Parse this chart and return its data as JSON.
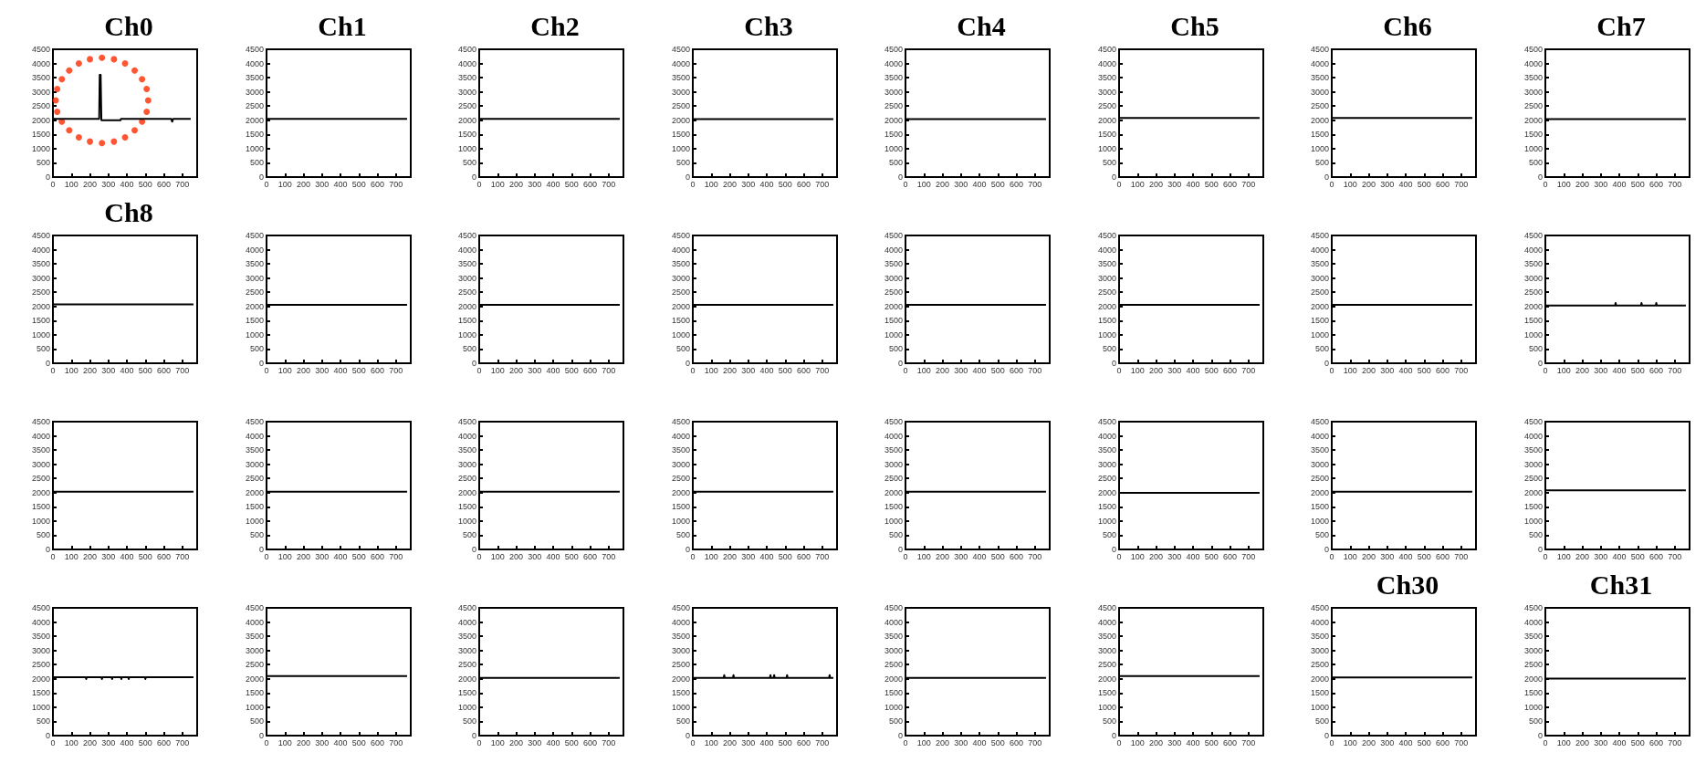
{
  "chart_data": [
    {
      "type": "line",
      "title": "Ch0",
      "xlim": [
        0,
        780
      ],
      "xticks": [
        0,
        100,
        200,
        300,
        400,
        500,
        600,
        700
      ],
      "ylim": [
        0,
        4500
      ],
      "yticks": [
        0,
        500,
        1000,
        1500,
        2000,
        2500,
        3000,
        3500,
        4000,
        4500
      ],
      "marker": "none",
      "series": [
        {
          "type": "line",
          "color": "#000000",
          "x": [
            0,
            250,
            253,
            258,
            262,
            365,
            368,
            640,
            645,
            650,
            745
          ],
          "values": [
            2050,
            2050,
            3600,
            3600,
            2000,
            2000,
            2050,
            2050,
            1950,
            2050,
            2050
          ]
        },
        {
          "type": "scatter",
          "color": "#ff2a00",
          "marker": "circle",
          "x": [
            515,
            507,
            482,
            442,
            390,
            330,
            265,
            200,
            140,
            88,
            48,
            23,
            15,
            23,
            48,
            88,
            140,
            200,
            265,
            330,
            390,
            442,
            482,
            507
          ],
          "values": [
            2700,
            3100,
            3450,
            3750,
            4000,
            4150,
            4200,
            4150,
            4000,
            3750,
            3450,
            3100,
            2700,
            2300,
            1950,
            1650,
            1400,
            1250,
            1200,
            1250,
            1400,
            1650,
            1950,
            2300
          ]
        }
      ]
    },
    {
      "type": "line",
      "title": "Ch1",
      "x": [
        0,
        760
      ],
      "values": [
        2050,
        2050
      ],
      "color": "#000000",
      "xlim": [
        0,
        780
      ],
      "xticks": [
        0,
        100,
        200,
        300,
        400,
        500,
        600,
        700
      ],
      "ylim": [
        0,
        4500
      ],
      "yticks": [
        0,
        500,
        1000,
        1500,
        2000,
        2500,
        3000,
        3500,
        4000,
        4500
      ],
      "marker": "none"
    },
    {
      "type": "line",
      "title": "Ch2",
      "x": [
        0,
        760
      ],
      "values": [
        2050,
        2050
      ],
      "color": "#000000",
      "xlim": [
        0,
        780
      ],
      "xticks": [
        0,
        100,
        200,
        300,
        400,
        500,
        600,
        700
      ],
      "ylim": [
        0,
        4500
      ],
      "yticks": [
        0,
        500,
        1000,
        1500,
        2000,
        2500,
        3000,
        3500,
        4000,
        4500
      ],
      "marker": "none"
    },
    {
      "type": "line",
      "title": "Ch3",
      "x": [
        0,
        760
      ],
      "values": [
        2040,
        2040
      ],
      "color": "#000000",
      "xlim": [
        0,
        780
      ],
      "xticks": [
        0,
        100,
        200,
        300,
        400,
        500,
        600,
        700
      ],
      "ylim": [
        0,
        4500
      ],
      "yticks": [
        0,
        500,
        1000,
        1500,
        2000,
        2500,
        3000,
        3500,
        4000,
        4500
      ],
      "marker": "none"
    },
    {
      "type": "line",
      "title": "Ch4",
      "x": [
        0,
        760
      ],
      "values": [
        2040,
        2040
      ],
      "color": "#000000",
      "xlim": [
        0,
        780
      ],
      "xticks": [
        0,
        100,
        200,
        300,
        400,
        500,
        600,
        700
      ],
      "ylim": [
        0,
        4500
      ],
      "yticks": [
        0,
        500,
        1000,
        1500,
        2000,
        2500,
        3000,
        3500,
        4000,
        4500
      ],
      "marker": "none"
    },
    {
      "type": "line",
      "title": "Ch5",
      "x": [
        0,
        760
      ],
      "values": [
        2080,
        2080
      ],
      "color": "#000000",
      "xlim": [
        0,
        780
      ],
      "xticks": [
        0,
        100,
        200,
        300,
        400,
        500,
        600,
        700
      ],
      "ylim": [
        0,
        4500
      ],
      "yticks": [
        0,
        500,
        1000,
        1500,
        2000,
        2500,
        3000,
        3500,
        4000,
        4500
      ],
      "marker": "none"
    },
    {
      "type": "line",
      "title": "Ch6",
      "x": [
        0,
        760
      ],
      "values": [
        2080,
        2080
      ],
      "color": "#000000",
      "xlim": [
        0,
        780
      ],
      "xticks": [
        0,
        100,
        200,
        300,
        400,
        500,
        600,
        700
      ],
      "ylim": [
        0,
        4500
      ],
      "yticks": [
        0,
        500,
        1000,
        1500,
        2000,
        2500,
        3000,
        3500,
        4000,
        4500
      ],
      "marker": "none"
    },
    {
      "type": "line",
      "title": "Ch7",
      "x": [
        0,
        760
      ],
      "values": [
        2040,
        2040
      ],
      "color": "#000000",
      "xlim": [
        0,
        780
      ],
      "xticks": [
        0,
        100,
        200,
        300,
        400,
        500,
        600,
        700
      ],
      "ylim": [
        0,
        4500
      ],
      "yticks": [
        0,
        500,
        1000,
        1500,
        2000,
        2500,
        3000,
        3500,
        4000,
        4500
      ],
      "marker": "none"
    },
    {
      "type": "line",
      "title": "Ch8",
      "x": [
        0,
        760
      ],
      "values": [
        2070,
        2070
      ],
      "color": "#000000",
      "xlim": [
        0,
        780
      ],
      "xticks": [
        0,
        100,
        200,
        300,
        400,
        500,
        600,
        700
      ],
      "ylim": [
        0,
        4500
      ],
      "yticks": [
        0,
        500,
        1000,
        1500,
        2000,
        2500,
        3000,
        3500,
        4000,
        4500
      ],
      "marker": "none"
    },
    {
      "type": "line",
      "x": [
        0,
        760
      ],
      "values": [
        2060,
        2060
      ],
      "color": "#000000",
      "xlim": [
        0,
        780
      ],
      "xticks": [
        0,
        100,
        200,
        300,
        400,
        500,
        600,
        700
      ],
      "ylim": [
        0,
        4500
      ],
      "yticks": [
        0,
        500,
        1000,
        1500,
        2000,
        2500,
        3000,
        3500,
        4000,
        4500
      ],
      "marker": "none"
    },
    {
      "type": "line",
      "x": [
        0,
        760
      ],
      "values": [
        2060,
        2060
      ],
      "color": "#000000",
      "xlim": [
        0,
        780
      ],
      "xticks": [
        0,
        100,
        200,
        300,
        400,
        500,
        600,
        700
      ],
      "ylim": [
        0,
        4500
      ],
      "yticks": [
        0,
        500,
        1000,
        1500,
        2000,
        2500,
        3000,
        3500,
        4000,
        4500
      ],
      "marker": "none"
    },
    {
      "type": "line",
      "x": [
        0,
        760
      ],
      "values": [
        2060,
        2060
      ],
      "color": "#000000",
      "xlim": [
        0,
        780
      ],
      "xticks": [
        0,
        100,
        200,
        300,
        400,
        500,
        600,
        700
      ],
      "ylim": [
        0,
        4500
      ],
      "yticks": [
        0,
        500,
        1000,
        1500,
        2000,
        2500,
        3000,
        3500,
        4000,
        4500
      ],
      "marker": "none"
    },
    {
      "type": "line",
      "x": [
        0,
        760
      ],
      "values": [
        2060,
        2060
      ],
      "color": "#000000",
      "xlim": [
        0,
        780
      ],
      "xticks": [
        0,
        100,
        200,
        300,
        400,
        500,
        600,
        700
      ],
      "ylim": [
        0,
        4500
      ],
      "yticks": [
        0,
        500,
        1000,
        1500,
        2000,
        2500,
        3000,
        3500,
        4000,
        4500
      ],
      "marker": "none"
    },
    {
      "type": "line",
      "x": [
        0,
        760
      ],
      "values": [
        2060,
        2060
      ],
      "color": "#000000",
      "xlim": [
        0,
        780
      ],
      "xticks": [
        0,
        100,
        200,
        300,
        400,
        500,
        600,
        700
      ],
      "ylim": [
        0,
        4500
      ],
      "yticks": [
        0,
        500,
        1000,
        1500,
        2000,
        2500,
        3000,
        3500,
        4000,
        4500
      ],
      "marker": "none"
    },
    {
      "type": "line",
      "x": [
        0,
        760
      ],
      "values": [
        2060,
        2060
      ],
      "color": "#000000",
      "xlim": [
        0,
        780
      ],
      "xticks": [
        0,
        100,
        200,
        300,
        400,
        500,
        600,
        700
      ],
      "ylim": [
        0,
        4500
      ],
      "yticks": [
        0,
        500,
        1000,
        1500,
        2000,
        2500,
        3000,
        3500,
        4000,
        4500
      ],
      "marker": "none"
    },
    {
      "type": "line",
      "x": [
        0,
        377,
        380,
        383,
        517,
        520,
        523,
        597,
        600,
        603,
        760
      ],
      "values": [
        2030,
        2030,
        2120,
        2030,
        2030,
        2120,
        2030,
        2030,
        2120,
        2030,
        2030
      ],
      "color": "#000000",
      "xlim": [
        0,
        780
      ],
      "xticks": [
        0,
        100,
        200,
        300,
        400,
        500,
        600,
        700
      ],
      "ylim": [
        0,
        4500
      ],
      "yticks": [
        0,
        500,
        1000,
        1500,
        2000,
        2500,
        3000,
        3500,
        4000,
        4500
      ],
      "marker": "none"
    },
    {
      "type": "line",
      "x": [
        0,
        760
      ],
      "values": [
        2030,
        2030
      ],
      "color": "#000000",
      "xlim": [
        0,
        780
      ],
      "xticks": [
        0,
        100,
        200,
        300,
        400,
        500,
        600,
        700
      ],
      "ylim": [
        0,
        4500
      ],
      "yticks": [
        0,
        500,
        1000,
        1500,
        2000,
        2500,
        3000,
        3500,
        4000,
        4500
      ],
      "marker": "none"
    },
    {
      "type": "line",
      "x": [
        0,
        760
      ],
      "values": [
        2030,
        2030
      ],
      "color": "#000000",
      "xlim": [
        0,
        780
      ],
      "xticks": [
        0,
        100,
        200,
        300,
        400,
        500,
        600,
        700
      ],
      "ylim": [
        0,
        4500
      ],
      "yticks": [
        0,
        500,
        1000,
        1500,
        2000,
        2500,
        3000,
        3500,
        4000,
        4500
      ],
      "marker": "none"
    },
    {
      "type": "line",
      "x": [
        0,
        760
      ],
      "values": [
        2030,
        2030
      ],
      "color": "#000000",
      "xlim": [
        0,
        780
      ],
      "xticks": [
        0,
        100,
        200,
        300,
        400,
        500,
        600,
        700
      ],
      "ylim": [
        0,
        4500
      ],
      "yticks": [
        0,
        500,
        1000,
        1500,
        2000,
        2500,
        3000,
        3500,
        4000,
        4500
      ],
      "marker": "none"
    },
    {
      "type": "line",
      "x": [
        0,
        760
      ],
      "values": [
        2030,
        2030
      ],
      "color": "#000000",
      "xlim": [
        0,
        780
      ],
      "xticks": [
        0,
        100,
        200,
        300,
        400,
        500,
        600,
        700
      ],
      "ylim": [
        0,
        4500
      ],
      "yticks": [
        0,
        500,
        1000,
        1500,
        2000,
        2500,
        3000,
        3500,
        4000,
        4500
      ],
      "marker": "none"
    },
    {
      "type": "line",
      "x": [
        0,
        760
      ],
      "values": [
        2030,
        2030
      ],
      "color": "#000000",
      "xlim": [
        0,
        780
      ],
      "xticks": [
        0,
        100,
        200,
        300,
        400,
        500,
        600,
        700
      ],
      "ylim": [
        0,
        4500
      ],
      "yticks": [
        0,
        500,
        1000,
        1500,
        2000,
        2500,
        3000,
        3500,
        4000,
        4500
      ],
      "marker": "none"
    },
    {
      "type": "line",
      "x": [
        0,
        760
      ],
      "values": [
        1990,
        1990
      ],
      "color": "#000000",
      "xlim": [
        0,
        780
      ],
      "xticks": [
        0,
        100,
        200,
        300,
        400,
        500,
        600,
        700
      ],
      "ylim": [
        0,
        4500
      ],
      "yticks": [
        0,
        500,
        1000,
        1500,
        2000,
        2500,
        3000,
        3500,
        4000,
        4500
      ],
      "marker": "none"
    },
    {
      "type": "line",
      "x": [
        0,
        760
      ],
      "values": [
        2030,
        2030
      ],
      "color": "#000000",
      "xlim": [
        0,
        780
      ],
      "xticks": [
        0,
        100,
        200,
        300,
        400,
        500,
        600,
        700
      ],
      "ylim": [
        0,
        4500
      ],
      "yticks": [
        0,
        500,
        1000,
        1500,
        2000,
        2500,
        3000,
        3500,
        4000,
        4500
      ],
      "marker": "none"
    },
    {
      "type": "line",
      "x": [
        0,
        760
      ],
      "values": [
        2080,
        2080
      ],
      "color": "#000000",
      "xlim": [
        0,
        780
      ],
      "xticks": [
        0,
        100,
        200,
        300,
        400,
        500,
        600,
        700
      ],
      "ylim": [
        0,
        4500
      ],
      "yticks": [
        0,
        500,
        1000,
        1500,
        2000,
        2500,
        3000,
        3500,
        4000,
        4500
      ],
      "marker": "none"
    },
    {
      "type": "line",
      "x": [
        0,
        177,
        180,
        183,
        262,
        265,
        268,
        317,
        320,
        323,
        367,
        370,
        373,
        407,
        410,
        413,
        497,
        500,
        503,
        760
      ],
      "values": [
        2060,
        2060,
        1990,
        2060,
        2060,
        1990,
        2060,
        2060,
        1990,
        2060,
        2060,
        1990,
        2060,
        2060,
        1990,
        2060,
        2060,
        1990,
        2060,
        2060
      ],
      "color": "#000000",
      "xlim": [
        0,
        780
      ],
      "xticks": [
        0,
        100,
        200,
        300,
        400,
        500,
        600,
        700
      ],
      "ylim": [
        0,
        4500
      ],
      "yticks": [
        0,
        500,
        1000,
        1500,
        2000,
        2500,
        3000,
        3500,
        4000,
        4500
      ],
      "marker": "none"
    },
    {
      "type": "line",
      "x": [
        0,
        760
      ],
      "values": [
        2100,
        2100
      ],
      "color": "#000000",
      "xlim": [
        0,
        780
      ],
      "xticks": [
        0,
        100,
        200,
        300,
        400,
        500,
        600,
        700
      ],
      "ylim": [
        0,
        4500
      ],
      "yticks": [
        0,
        500,
        1000,
        1500,
        2000,
        2500,
        3000,
        3500,
        4000,
        4500
      ],
      "marker": "none"
    },
    {
      "type": "line",
      "x": [
        0,
        760
      ],
      "values": [
        2030,
        2030
      ],
      "color": "#000000",
      "xlim": [
        0,
        780
      ],
      "xticks": [
        0,
        100,
        200,
        300,
        400,
        500,
        600,
        700
      ],
      "ylim": [
        0,
        4500
      ],
      "yticks": [
        0,
        500,
        1000,
        1500,
        2000,
        2500,
        3000,
        3500,
        4000,
        4500
      ],
      "marker": "none"
    },
    {
      "type": "line",
      "x": [
        0,
        167,
        170,
        173,
        217,
        220,
        223,
        417,
        420,
        423,
        437,
        440,
        443,
        507,
        510,
        513,
        737,
        740,
        743,
        760
      ],
      "values": [
        2030,
        2030,
        2130,
        2030,
        2030,
        2130,
        2030,
        2030,
        2130,
        2030,
        2030,
        2130,
        2030,
        2030,
        2130,
        2030,
        2030,
        2130,
        2030,
        2030
      ],
      "color": "#000000",
      "xlim": [
        0,
        780
      ],
      "xticks": [
        0,
        100,
        200,
        300,
        400,
        500,
        600,
        700
      ],
      "ylim": [
        0,
        4500
      ],
      "yticks": [
        0,
        500,
        1000,
        1500,
        2000,
        2500,
        3000,
        3500,
        4000,
        4500
      ],
      "marker": "none"
    },
    {
      "type": "line",
      "x": [
        0,
        760
      ],
      "values": [
        2030,
        2030
      ],
      "color": "#000000",
      "xlim": [
        0,
        780
      ],
      "xticks": [
        0,
        100,
        200,
        300,
        400,
        500,
        600,
        700
      ],
      "ylim": [
        0,
        4500
      ],
      "yticks": [
        0,
        500,
        1000,
        1500,
        2000,
        2500,
        3000,
        3500,
        4000,
        4500
      ],
      "marker": "none"
    },
    {
      "type": "line",
      "x": [
        0,
        760
      ],
      "values": [
        2100,
        2100
      ],
      "color": "#000000",
      "xlim": [
        0,
        780
      ],
      "xticks": [
        0,
        100,
        200,
        300,
        400,
        500,
        600,
        700
      ],
      "ylim": [
        0,
        4500
      ],
      "yticks": [
        0,
        500,
        1000,
        1500,
        2000,
        2500,
        3000,
        3500,
        4000,
        4500
      ],
      "marker": "none"
    },
    {
      "type": "line",
      "title": "Ch30",
      "x": [
        0,
        760
      ],
      "values": [
        2050,
        2050
      ],
      "color": "#000000",
      "xlim": [
        0,
        780
      ],
      "xticks": [
        0,
        100,
        200,
        300,
        400,
        500,
        600,
        700
      ],
      "ylim": [
        0,
        4500
      ],
      "yticks": [
        0,
        500,
        1000,
        1500,
        2000,
        2500,
        3000,
        3500,
        4000,
        4500
      ],
      "marker": "none"
    },
    {
      "type": "line",
      "title": "Ch31",
      "x": [
        0,
        760
      ],
      "values": [
        2010,
        2010
      ],
      "color": "#000000",
      "xlim": [
        0,
        780
      ],
      "xticks": [
        0,
        100,
        200,
        300,
        400,
        500,
        600,
        700
      ],
      "ylim": [
        0,
        4500
      ],
      "yticks": [
        0,
        500,
        1000,
        1500,
        2000,
        2500,
        3000,
        3500,
        4000,
        4500
      ],
      "marker": "none"
    }
  ]
}
